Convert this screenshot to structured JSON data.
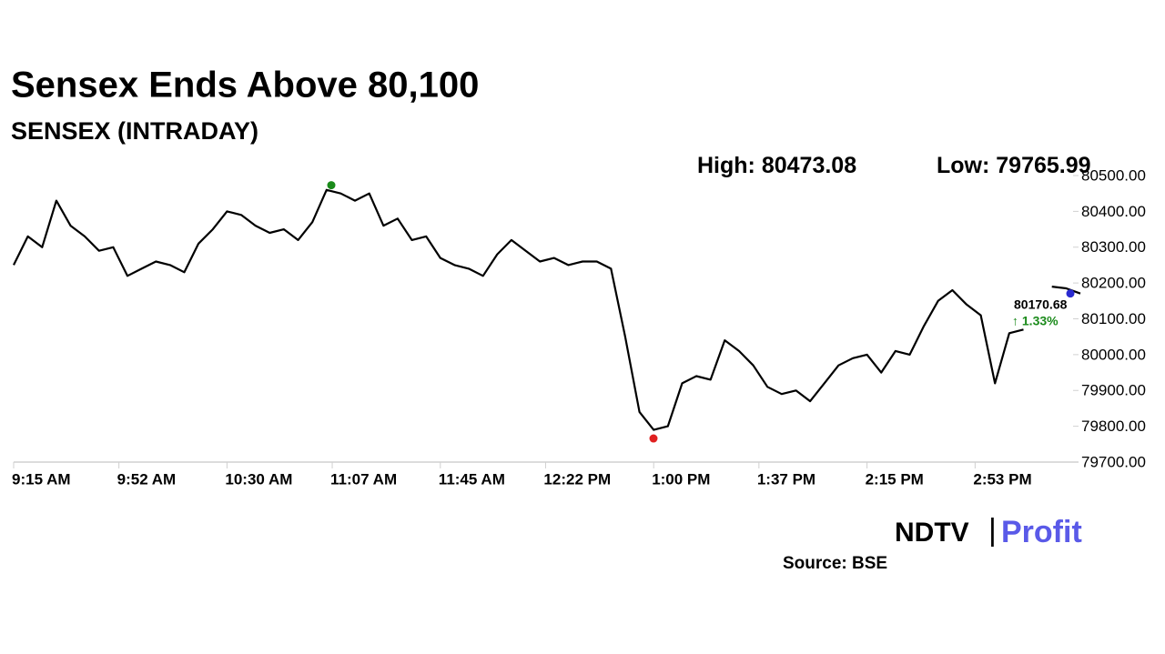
{
  "chart_data": {
    "type": "line",
    "title": "Sensex Ends Above 80,100",
    "subtitle": "SENSEX (INTRADAY)",
    "high_label": "High:",
    "high": 80473.08,
    "high_color": "#1a8a1a",
    "low_label": "Low:",
    "low": 79765.99,
    "low_color": "#e02020",
    "close": 80170.68,
    "close_color": "#2a2ad0",
    "change": 1.33,
    "change_label": "↑ 1.33%",
    "change_color": "#1a8a1a",
    "source": "Source: BSE",
    "logo": [
      "NDTV",
      "|",
      "Profit"
    ],
    "x": [
      "9:15 AM",
      "9:20 AM",
      "9:25 AM",
      "9:30 AM",
      "9:35 AM",
      "9:40 AM",
      "9:45 AM",
      "9:50 AM",
      "9:55 AM",
      "10:00 AM",
      "10:05 AM",
      "10:10 AM",
      "10:15 AM",
      "10:20 AM",
      "10:25 AM",
      "10:30 AM",
      "10:35 AM",
      "10:40 AM",
      "10:45 AM",
      "10:50 AM",
      "10:55 AM",
      "11:00 AM",
      "11:05 AM",
      "11:10 AM",
      "11:15 AM",
      "11:20 AM",
      "11:25 AM",
      "11:30 AM",
      "11:35 AM",
      "11:40 AM",
      "11:45 AM",
      "11:50 AM",
      "11:55 AM",
      "12:00 PM",
      "12:05 PM",
      "12:10 PM",
      "12:15 PM",
      "12:20 PM",
      "12:25 PM",
      "12:30 PM",
      "12:35 PM",
      "12:40 PM",
      "12:45 PM",
      "12:50 PM",
      "12:55 PM",
      "1:00 PM",
      "1:05 PM",
      "1:10 PM",
      "1:15 PM",
      "1:20 PM",
      "1:25 PM",
      "1:30 PM",
      "1:35 PM",
      "1:40 PM",
      "1:45 PM",
      "1:50 PM",
      "1:55 PM",
      "2:00 PM",
      "2:05 PM",
      "2:10 PM",
      "2:15 PM",
      "2:20 PM",
      "2:25 PM",
      "2:30 PM",
      "2:35 PM",
      "2:40 PM",
      "2:45 PM",
      "2:50 PM",
      "2:55 PM",
      "3:00 PM",
      "3:05 PM",
      "3:10 PM",
      "3:15 PM",
      "3:20 PM",
      "3:25 PM",
      "3:30 PM"
    ],
    "series": [
      {
        "color": "#000000",
        "values": [
          80250,
          80330,
          80300,
          80430,
          80360,
          80330,
          80290,
          80300,
          80220,
          80240,
          80260,
          80250,
          80230,
          80310,
          80350,
          80400,
          80390,
          80360,
          80340,
          80350,
          80320,
          80370,
          80460,
          80450,
          80430,
          80450,
          80360,
          80380,
          80320,
          80330,
          80270,
          80250,
          80240,
          80220,
          80280,
          80320,
          80290,
          80260,
          80270,
          80250,
          80260,
          80260,
          80240,
          80050,
          79840,
          79790,
          79800,
          79920,
          79940,
          79930,
          80040,
          80010,
          79970,
          79910,
          79890,
          79900,
          79870,
          79920,
          79970,
          79990,
          80000,
          79950,
          80010,
          80000,
          80080,
          80150,
          80180,
          80140,
          80110,
          79920,
          80060,
          80070,
          null,
          80190,
          80185,
          80170.68
        ]
      }
    ],
    "xlim": [
      "9:15 AM",
      "3:30 PM"
    ],
    "xticks": [
      "9:15 AM",
      "9:52 AM",
      "10:30 AM",
      "11:07 AM",
      "11:45 AM",
      "12:22 PM",
      "1:00 PM",
      "1:37 PM",
      "2:15 PM",
      "2:53 PM"
    ],
    "ylim": [
      79700,
      80500
    ],
    "yticks": [
      {
        "value": 79700,
        "label": "79700.00"
      },
      {
        "value": 79800,
        "label": "79800.00"
      },
      {
        "value": 79900,
        "label": "79900.00"
      },
      {
        "value": 80000,
        "label": "80000.00"
      },
      {
        "value": 80100,
        "label": "80100.00"
      },
      {
        "value": 80200,
        "label": "80200.00"
      },
      {
        "value": 80300,
        "label": "80300.00"
      },
      {
        "value": 80400,
        "label": "80400.00"
      },
      {
        "value": 80500,
        "label": "80500.00"
      }
    ]
  }
}
